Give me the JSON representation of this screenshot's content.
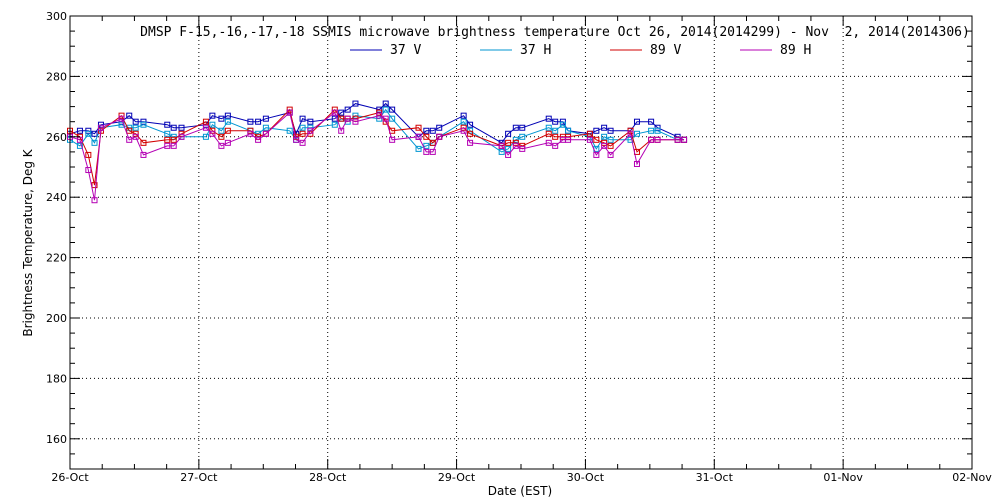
{
  "chart_data": {
    "type": "line",
    "title": "DMSP F-15,-16,-17,-18 SSMIS microwave brightness temperature Oct 26, 2014(2014299) - Nov  2, 2014(2014306)",
    "xlabel": "Date (EST)",
    "ylabel": "Brightness Temperature, Deg K",
    "xlim": [
      "2014-10-26T00:00",
      "2014-11-02T00:00"
    ],
    "ylim": [
      150,
      300
    ],
    "x_ticks": [
      "26-Oct",
      "27-Oct",
      "28-Oct",
      "29-Oct",
      "30-Oct",
      "31-Oct",
      "01-Nov",
      "02-Nov"
    ],
    "y_ticks": [
      160,
      180,
      200,
      220,
      240,
      260,
      280,
      300
    ],
    "grid": true,
    "legend_position": "top-center",
    "colors": {
      "37 V": "#0000b4",
      "37 H": "#0096d2",
      "89 V": "#d20000",
      "89 H": "#b400b4"
    },
    "series": [
      {
        "name": "37 V",
        "points": [
          [
            "2014-10-26T00:00",
            261
          ],
          [
            "2014-10-26T01:51",
            262
          ],
          [
            "2014-10-26T03:25",
            262
          ],
          [
            "2014-10-26T04:34",
            261
          ],
          [
            "2014-10-26T05:46",
            264
          ],
          [
            "2014-10-26T09:36",
            265
          ],
          [
            "2014-10-26T11:02",
            267
          ],
          [
            "2014-10-26T12:14",
            265
          ],
          [
            "2014-10-26T13:41",
            265
          ],
          [
            "2014-10-26T18:07",
            264
          ],
          [
            "2014-10-26T19:19",
            263
          ],
          [
            "2014-10-26T20:46",
            263
          ],
          [
            "2014-10-27T01:19",
            264
          ],
          [
            "2014-10-27T02:31",
            267
          ],
          [
            "2014-10-27T04:12",
            266
          ],
          [
            "2014-10-27T05:24",
            267
          ],
          [
            "2014-10-27T09:36",
            265
          ],
          [
            "2014-10-27T11:02",
            265
          ],
          [
            "2014-10-27T12:29",
            266
          ],
          [
            "2014-10-27T16:55",
            268
          ],
          [
            "2014-10-27T18:07",
            261
          ],
          [
            "2014-10-27T19:19",
            266
          ],
          [
            "2014-10-27T20:46",
            265
          ],
          [
            "2014-10-28T01:19",
            266
          ],
          [
            "2014-10-28T02:31",
            268
          ],
          [
            "2014-10-28T03:43",
            269
          ],
          [
            "2014-10-28T05:10",
            271
          ],
          [
            "2014-10-28T09:36",
            269
          ],
          [
            "2014-10-28T10:48",
            271
          ],
          [
            "2014-10-28T12:00",
            269
          ],
          [
            "2014-10-28T16:55",
            260
          ],
          [
            "2014-10-28T18:22",
            262
          ],
          [
            "2014-10-28T19:34",
            262
          ],
          [
            "2014-10-28T20:46",
            263
          ],
          [
            "2014-10-29T01:19",
            267
          ],
          [
            "2014-10-29T02:31",
            264
          ],
          [
            "2014-10-29T08:24",
            258
          ],
          [
            "2014-10-29T09:36",
            261
          ],
          [
            "2014-10-29T11:02",
            263
          ],
          [
            "2014-10-29T12:14",
            263
          ],
          [
            "2014-10-29T17:10",
            266
          ],
          [
            "2014-10-29T18:22",
            265
          ],
          [
            "2014-10-29T19:48",
            265
          ],
          [
            "2014-10-29T20:46",
            262
          ],
          [
            "2014-10-30T00:50",
            261
          ],
          [
            "2014-10-30T02:02",
            262
          ],
          [
            "2014-10-30T03:29",
            263
          ],
          [
            "2014-10-30T04:41",
            262
          ],
          [
            "2014-10-30T08:24",
            262
          ],
          [
            "2014-10-30T09:36",
            265
          ],
          [
            "2014-10-30T12:14",
            265
          ],
          [
            "2014-10-30T13:26",
            263
          ],
          [
            "2014-10-30T17:10",
            260
          ],
          [
            "2014-10-30T18:22",
            259
          ]
        ]
      },
      {
        "name": "37 H",
        "points": [
          [
            "2014-10-26T00:00",
            259
          ],
          [
            "2014-10-26T01:51",
            257
          ],
          [
            "2014-10-26T03:25",
            261
          ],
          [
            "2014-10-26T04:34",
            258
          ],
          [
            "2014-10-26T05:46",
            263
          ],
          [
            "2014-10-26T09:36",
            264
          ],
          [
            "2014-10-26T11:02",
            263
          ],
          [
            "2014-10-26T12:14",
            263
          ],
          [
            "2014-10-26T13:41",
            264
          ],
          [
            "2014-10-26T18:07",
            261
          ],
          [
            "2014-10-26T19:19",
            260
          ],
          [
            "2014-10-26T20:46",
            260
          ],
          [
            "2014-10-27T01:19",
            260
          ],
          [
            "2014-10-27T02:31",
            264
          ],
          [
            "2014-10-27T04:12",
            262
          ],
          [
            "2014-10-27T05:24",
            265
          ],
          [
            "2014-10-27T09:36",
            262
          ],
          [
            "2014-10-27T11:02",
            261
          ],
          [
            "2014-10-27T12:29",
            263
          ],
          [
            "2014-10-27T16:55",
            262
          ],
          [
            "2014-10-27T18:07",
            259
          ],
          [
            "2014-10-27T19:19",
            263
          ],
          [
            "2014-10-27T20:46",
            263
          ],
          [
            "2014-10-28T01:19",
            264
          ],
          [
            "2014-10-28T02:31",
            266
          ],
          [
            "2014-10-28T03:43",
            265
          ],
          [
            "2014-10-28T05:10",
            267
          ],
          [
            "2014-10-28T09:36",
            266
          ],
          [
            "2014-10-28T10:48",
            269
          ],
          [
            "2014-10-28T12:00",
            266
          ],
          [
            "2014-10-28T16:55",
            256
          ],
          [
            "2014-10-28T18:22",
            257
          ],
          [
            "2014-10-28T19:34",
            258
          ],
          [
            "2014-10-28T20:46",
            260
          ],
          [
            "2014-10-29T01:19",
            265
          ],
          [
            "2014-10-29T02:31",
            262
          ],
          [
            "2014-10-29T08:24",
            255
          ],
          [
            "2014-10-29T09:36",
            256
          ],
          [
            "2014-10-29T11:02",
            259
          ],
          [
            "2014-10-29T12:14",
            260
          ],
          [
            "2014-10-29T17:10",
            263
          ],
          [
            "2014-10-29T18:22",
            262
          ],
          [
            "2014-10-29T19:48",
            264
          ],
          [
            "2014-10-29T20:46",
            262
          ],
          [
            "2014-10-30T00:50",
            260
          ],
          [
            "2014-10-30T02:02",
            256
          ],
          [
            "2014-10-30T03:29",
            260
          ],
          [
            "2014-10-30T04:41",
            259
          ],
          [
            "2014-10-30T08:24",
            259
          ],
          [
            "2014-10-30T09:36",
            261
          ],
          [
            "2014-10-30T12:14",
            262
          ],
          [
            "2014-10-30T13:26",
            262
          ],
          [
            "2014-10-30T17:10",
            259
          ],
          [
            "2014-10-30T18:22",
            259
          ]
        ]
      },
      {
        "name": "89 V",
        "points": [
          [
            "2014-10-26T00:00",
            262
          ],
          [
            "2014-10-26T01:51",
            260
          ],
          [
            "2014-10-26T03:25",
            254
          ],
          [
            "2014-10-26T04:34",
            244
          ],
          [
            "2014-10-26T05:46",
            262
          ],
          [
            "2014-10-26T09:36",
            267
          ],
          [
            "2014-10-26T11:02",
            262
          ],
          [
            "2014-10-26T12:14",
            261
          ],
          [
            "2014-10-26T13:41",
            258
          ],
          [
            "2014-10-26T18:07",
            259
          ],
          [
            "2014-10-26T19:19",
            259
          ],
          [
            "2014-10-26T20:46",
            261
          ],
          [
            "2014-10-27T01:19",
            265
          ],
          [
            "2014-10-27T02:31",
            262
          ],
          [
            "2014-10-27T04:12",
            260
          ],
          [
            "2014-10-27T05:24",
            262
          ],
          [
            "2014-10-27T09:36",
            262
          ],
          [
            "2014-10-27T11:02",
            260
          ],
          [
            "2014-10-27T12:29",
            261
          ],
          [
            "2014-10-27T16:55",
            269
          ],
          [
            "2014-10-27T18:07",
            260
          ],
          [
            "2014-10-27T19:19",
            261
          ],
          [
            "2014-10-27T20:46",
            261
          ],
          [
            "2014-10-28T01:19",
            269
          ],
          [
            "2014-10-28T02:31",
            266
          ],
          [
            "2014-10-28T03:43",
            266
          ],
          [
            "2014-10-28T05:10",
            266
          ],
          [
            "2014-10-28T09:36",
            268
          ],
          [
            "2014-10-28T10:48",
            265
          ],
          [
            "2014-10-28T12:00",
            262
          ],
          [
            "2014-10-28T16:55",
            263
          ],
          [
            "2014-10-28T18:22",
            260
          ],
          [
            "2014-10-28T19:34",
            258
          ],
          [
            "2014-10-28T20:46",
            260
          ],
          [
            "2014-10-29T01:19",
            263
          ],
          [
            "2014-10-29T02:31",
            261
          ],
          [
            "2014-10-29T08:24",
            257
          ],
          [
            "2014-10-29T09:36",
            258
          ],
          [
            "2014-10-29T11:02",
            258
          ],
          [
            "2014-10-29T12:14",
            257
          ],
          [
            "2014-10-29T17:10",
            261
          ],
          [
            "2014-10-29T18:22",
            260
          ],
          [
            "2014-10-29T19:48",
            260
          ],
          [
            "2014-10-29T20:46",
            260
          ],
          [
            "2014-10-30T00:50",
            261
          ],
          [
            "2014-10-30T02:02",
            259
          ],
          [
            "2014-10-30T03:29",
            258
          ],
          [
            "2014-10-30T04:41",
            257
          ],
          [
            "2014-10-30T08:24",
            262
          ],
          [
            "2014-10-30T09:36",
            255
          ],
          [
            "2014-10-30T12:14",
            259
          ],
          [
            "2014-10-30T13:26",
            259
          ],
          [
            "2014-10-30T17:10",
            259
          ],
          [
            "2014-10-30T18:22",
            259
          ]
        ]
      },
      {
        "name": "89 H",
        "points": [
          [
            "2014-10-26T00:00",
            260
          ],
          [
            "2014-10-26T01:51",
            259
          ],
          [
            "2014-10-26T03:25",
            249
          ],
          [
            "2014-10-26T04:34",
            239
          ],
          [
            "2014-10-26T05:46",
            263
          ],
          [
            "2014-10-26T09:36",
            266
          ],
          [
            "2014-10-26T11:02",
            259
          ],
          [
            "2014-10-26T12:14",
            260
          ],
          [
            "2014-10-26T13:41",
            254
          ],
          [
            "2014-10-26T18:07",
            257
          ],
          [
            "2014-10-26T19:19",
            257
          ],
          [
            "2014-10-26T20:46",
            260
          ],
          [
            "2014-10-27T01:19",
            263
          ],
          [
            "2014-10-27T02:31",
            261
          ],
          [
            "2014-10-27T04:12",
            257
          ],
          [
            "2014-10-27T05:24",
            258
          ],
          [
            "2014-10-27T09:36",
            261
          ],
          [
            "2014-10-27T11:02",
            259
          ],
          [
            "2014-10-27T12:29",
            261
          ],
          [
            "2014-10-27T16:55",
            268
          ],
          [
            "2014-10-27T18:07",
            259
          ],
          [
            "2014-10-27T19:19",
            258
          ],
          [
            "2014-10-27T20:46",
            262
          ],
          [
            "2014-10-28T01:19",
            268
          ],
          [
            "2014-10-28T02:31",
            262
          ],
          [
            "2014-10-28T03:43",
            266
          ],
          [
            "2014-10-28T05:10",
            265
          ],
          [
            "2014-10-28T09:36",
            267
          ],
          [
            "2014-10-28T10:48",
            266
          ],
          [
            "2014-10-28T12:00",
            259
          ],
          [
            "2014-10-28T16:55",
            260
          ],
          [
            "2014-10-28T18:22",
            255
          ],
          [
            "2014-10-28T19:34",
            255
          ],
          [
            "2014-10-28T20:46",
            260
          ],
          [
            "2014-10-29T01:19",
            262
          ],
          [
            "2014-10-29T02:31",
            258
          ],
          [
            "2014-10-29T08:24",
            257
          ],
          [
            "2014-10-29T09:36",
            254
          ],
          [
            "2014-10-29T11:02",
            257
          ],
          [
            "2014-10-29T12:14",
            256
          ],
          [
            "2014-10-29T17:10",
            258
          ],
          [
            "2014-10-29T18:22",
            257
          ],
          [
            "2014-10-29T19:48",
            259
          ],
          [
            "2014-10-29T20:46",
            259
          ],
          [
            "2014-10-30T00:50",
            259
          ],
          [
            "2014-10-30T02:02",
            254
          ],
          [
            "2014-10-30T03:29",
            257
          ],
          [
            "2014-10-30T04:41",
            254
          ],
          [
            "2014-10-30T08:24",
            261
          ],
          [
            "2014-10-30T09:36",
            251
          ],
          [
            "2014-10-30T12:14",
            259
          ],
          [
            "2014-10-30T13:26",
            259
          ],
          [
            "2014-10-30T17:10",
            259
          ],
          [
            "2014-10-30T18:22",
            259
          ]
        ]
      }
    ]
  }
}
